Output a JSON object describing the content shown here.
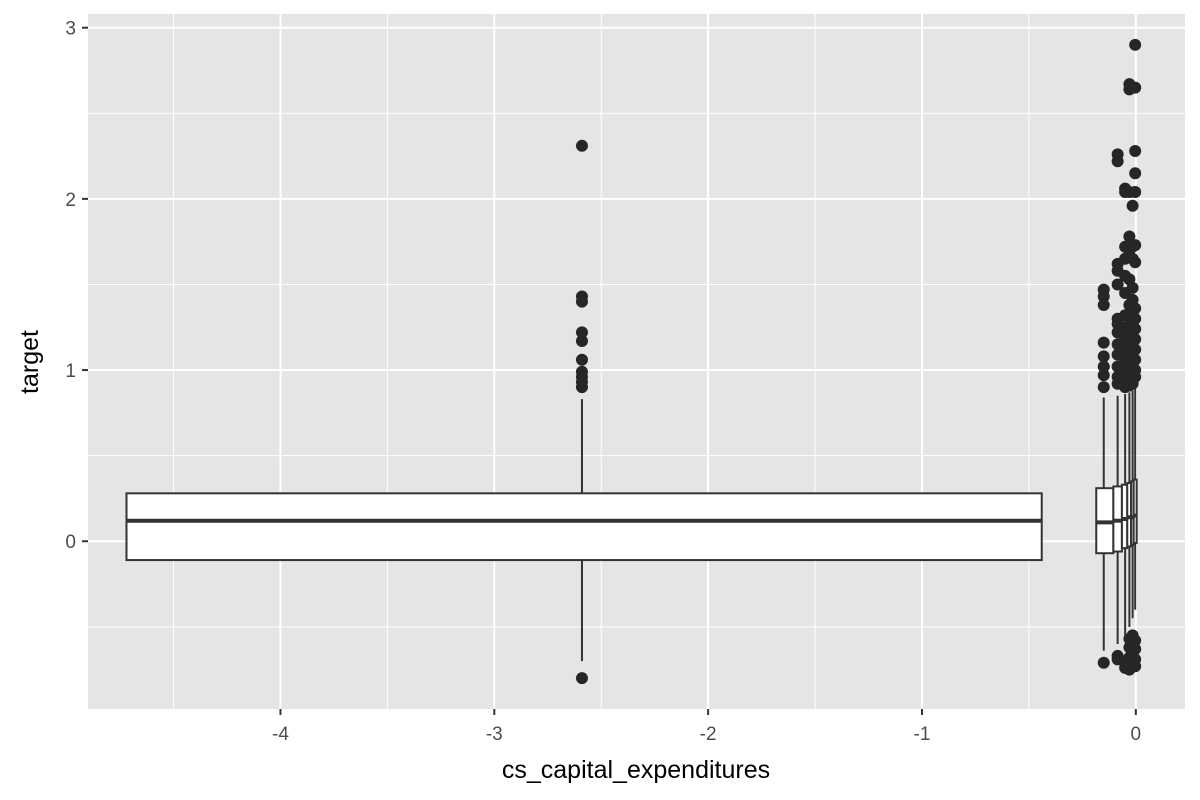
{
  "chart_data": {
    "type": "boxplot",
    "xlabel": "cs_capital_expenditures",
    "ylabel": "target",
    "xlim": [
      -4.9,
      0.23
    ],
    "ylim": [
      -0.98,
      3.08
    ],
    "x_ticks": [
      -4,
      -3,
      -2,
      -1,
      0
    ],
    "x_tick_labels": [
      "-4",
      "-3",
      "-2",
      "-1",
      "0"
    ],
    "y_ticks": [
      0,
      1,
      2,
      3
    ],
    "y_tick_labels": [
      "0",
      "1",
      "2",
      "3"
    ],
    "grid": true,
    "colors": {
      "panel": "#e5e5e5",
      "grid": "#ffffff",
      "box_fill": "#ffffff",
      "line": "#333333",
      "points": "#262626",
      "tick_text": "#4d4d4d"
    },
    "boxes": [
      {
        "x": -2.59,
        "x_from": -4.72,
        "x_to": -0.44,
        "q1": -0.11,
        "median": 0.12,
        "q3": 0.28,
        "whisker_low": -0.7,
        "whisker_high": 0.83,
        "outliers": [
          2.31,
          1.43,
          1.4,
          1.22,
          1.17,
          1.06,
          0.99,
          0.96,
          0.93,
          0.9,
          -0.8
        ]
      },
      {
        "x": -0.15,
        "x_from": -0.185,
        "x_to": -0.105,
        "q1": -0.07,
        "median": 0.11,
        "q3": 0.31,
        "whisker_low": -0.64,
        "whisker_high": 0.84,
        "outliers": [
          1.47,
          1.43,
          1.38,
          1.16,
          1.08,
          1.02,
          0.97,
          0.9,
          -0.71
        ]
      },
      {
        "x": -0.085,
        "x_from": -0.105,
        "x_to": -0.065,
        "q1": -0.06,
        "median": 0.12,
        "q3": 0.32,
        "whisker_low": -0.6,
        "whisker_high": 0.85,
        "outliers": [
          2.26,
          2.22,
          1.62,
          1.58,
          1.5,
          1.3,
          1.27,
          1.22,
          1.15,
          1.09,
          1.02,
          0.96,
          0.92,
          -0.67,
          -0.69
        ]
      },
      {
        "x": -0.05,
        "x_from": -0.065,
        "x_to": -0.04,
        "q1": -0.04,
        "median": 0.13,
        "q3": 0.33,
        "whisker_low": -0.55,
        "whisker_high": 0.86,
        "outliers": [
          2.06,
          2.04,
          1.72,
          1.65,
          1.55,
          1.45,
          1.32,
          1.25,
          1.18,
          1.12,
          1.05,
          0.98,
          0.94,
          0.9,
          -0.7,
          -0.74
        ]
      },
      {
        "x": -0.03,
        "x_from": -0.04,
        "x_to": -0.022,
        "q1": -0.03,
        "median": 0.14,
        "q3": 0.34,
        "whisker_low": -0.5,
        "whisker_high": 0.87,
        "outliers": [
          2.67,
          2.64,
          2.04,
          1.78,
          1.7,
          1.53,
          1.38,
          1.3,
          1.22,
          1.15,
          1.08,
          1.0,
          0.95,
          0.91,
          -0.57,
          -0.62,
          -0.68,
          -0.75
        ]
      },
      {
        "x": -0.015,
        "x_from": -0.022,
        "x_to": -0.01,
        "q1": -0.02,
        "median": 0.14,
        "q3": 0.35,
        "whisker_low": -0.45,
        "whisker_high": 0.88,
        "outliers": [
          1.96,
          1.72,
          1.65,
          1.48,
          1.41,
          1.33,
          1.27,
          1.2,
          1.14,
          1.07,
          1.01,
          0.96,
          0.92,
          -0.55,
          -0.6,
          -0.66,
          -0.72
        ]
      },
      {
        "x": -0.003,
        "x_from": -0.01,
        "x_to": 0.004,
        "q1": -0.01,
        "median": 0.15,
        "q3": 0.36,
        "whisker_low": -0.4,
        "whisker_high": 0.9,
        "outliers": [
          2.9,
          2.65,
          2.28,
          2.15,
          2.04,
          1.73,
          1.63,
          1.36,
          1.3,
          1.24,
          1.18,
          1.12,
          1.06,
          1.0,
          0.96,
          -0.58,
          -0.63,
          -0.69,
          -0.73
        ]
      }
    ]
  }
}
